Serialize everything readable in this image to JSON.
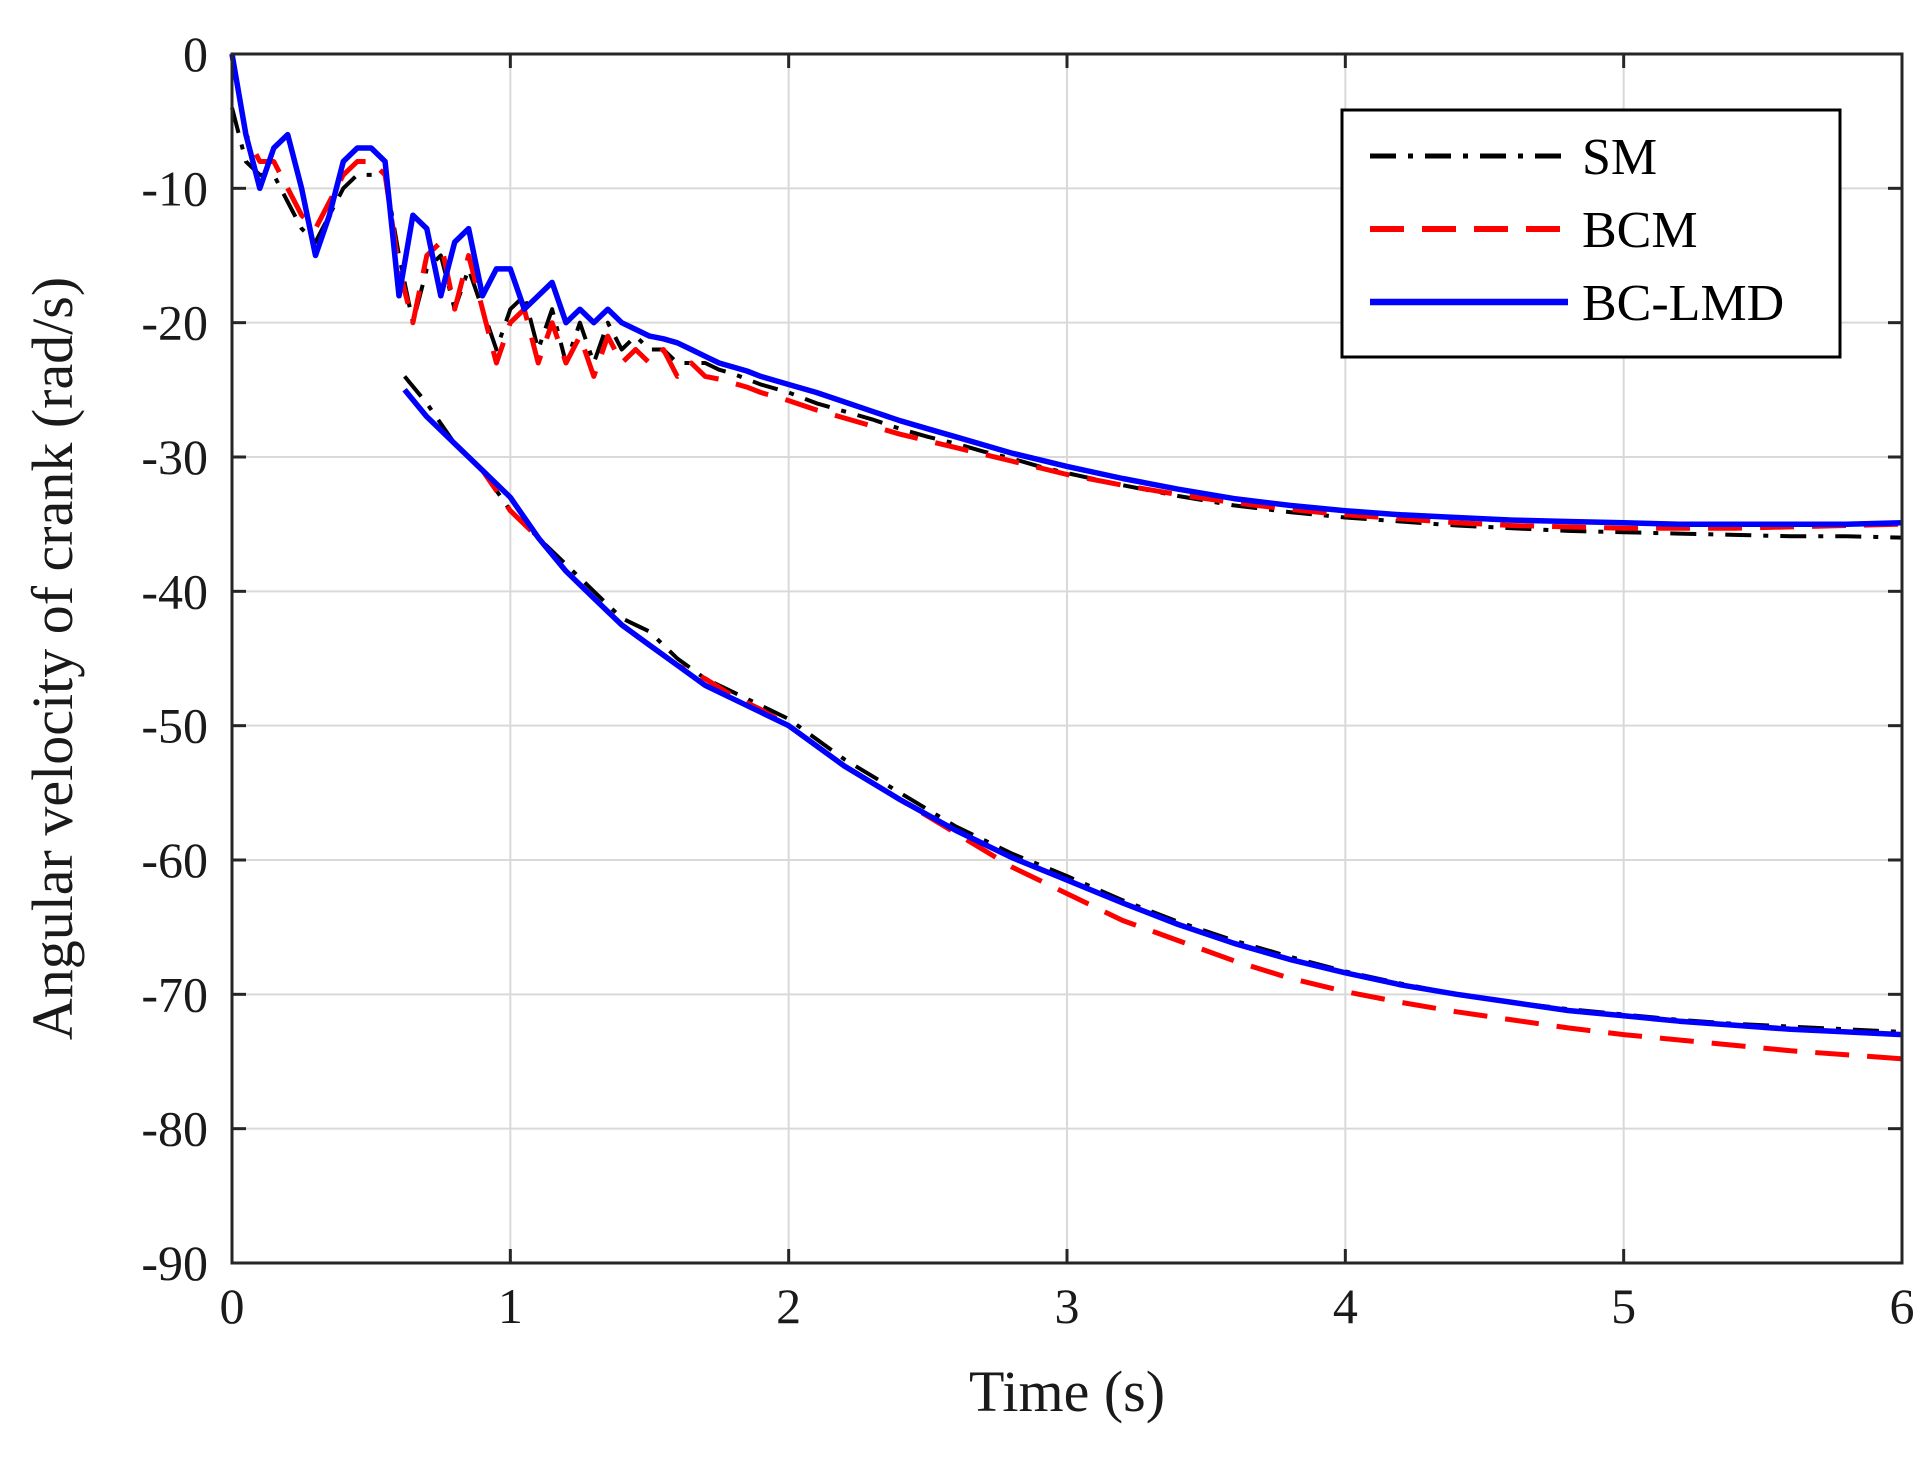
{
  "chart_data": {
    "type": "line",
    "title": "",
    "xlabel": "Time (s)",
    "ylabel": "Angular velocity of crank (rad/s)",
    "xlim": [
      0,
      6
    ],
    "ylim": [
      -90,
      0
    ],
    "x_ticks": [
      0,
      1,
      2,
      3,
      4,
      5,
      6
    ],
    "y_ticks": [
      0,
      -10,
      -20,
      -30,
      -40,
      -50,
      -60,
      -70,
      -80,
      -90
    ],
    "grid": true,
    "legend_position": "top-right",
    "series": [
      {
        "name": "SM",
        "color": "#000000",
        "style": "dashdot",
        "branches": [
          {
            "x": [
              0,
              0.05,
              0.1,
              0.15,
              0.2,
              0.25,
              0.3,
              0.35,
              0.4,
              0.45,
              0.5,
              0.55,
              0.6,
              0.65,
              0.7,
              0.75,
              0.8,
              0.85,
              0.9,
              0.95,
              1.0,
              1.05,
              1.1,
              1.15,
              1.2,
              1.25,
              1.3,
              1.35,
              1.4,
              1.45,
              1.5,
              1.55,
              1.6,
              1.65,
              1.7,
              1.75,
              1.8,
              1.85,
              1.9,
              2.0,
              2.1,
              2.2,
              2.3,
              2.4,
              2.5,
              2.6,
              2.7,
              2.8,
              2.9,
              3.0,
              3.2,
              3.4,
              3.6,
              3.8,
              4.0,
              4.2,
              4.4,
              4.6,
              4.8,
              5.0,
              5.2,
              5.4,
              5.6,
              5.8,
              6.0
            ],
            "y": [
              -4,
              -8,
              -9,
              -9,
              -11,
              -13,
              -14,
              -12,
              -10,
              -9,
              -9,
              -9,
              -15,
              -20,
              -16,
              -15,
              -19,
              -16,
              -19,
              -22,
              -19,
              -18,
              -22,
              -19,
              -23,
              -20,
              -23,
              -20,
              -22,
              -21,
              -22,
              -22,
              -23,
              -23,
              -23,
              -23.5,
              -23.8,
              -24.2,
              -24.6,
              -25.2,
              -26,
              -26.6,
              -27.2,
              -27.9,
              -28.5,
              -29,
              -29.6,
              -30.1,
              -30.7,
              -31.2,
              -32.1,
              -32.9,
              -33.6,
              -34.1,
              -34.5,
              -34.8,
              -35.1,
              -35.3,
              -35.5,
              -35.6,
              -35.7,
              -35.8,
              -35.9,
              -35.9,
              -36
            ]
          },
          {
            "x": [
              0.62,
              0.7,
              0.8,
              0.9,
              1.0,
              1.1,
              1.2,
              1.3,
              1.4,
              1.5,
              1.6,
              1.7,
              1.8,
              1.9,
              2.0,
              2.2,
              2.4,
              2.6,
              2.8,
              3.0,
              3.2,
              3.4,
              3.6,
              3.8,
              4.0,
              4.2,
              4.4,
              4.6,
              4.8,
              5.0,
              5.2,
              5.4,
              5.6,
              5.8,
              6.0
            ],
            "y": [
              -24,
              -26,
              -29,
              -31,
              -34,
              -36,
              -38,
              -40,
              -42,
              -43,
              -45,
              -46.5,
              -47.5,
              -48.5,
              -49.5,
              -52.5,
              -55,
              -57.5,
              -59.5,
              -61.2,
              -63,
              -64.6,
              -66,
              -67.2,
              -68.3,
              -69.2,
              -70,
              -70.6,
              -71.1,
              -71.5,
              -71.9,
              -72.2,
              -72.4,
              -72.6,
              -72.8
            ]
          }
        ]
      },
      {
        "name": "BCM",
        "color": "#ff0000",
        "style": "dashed",
        "branches": [
          {
            "x": [
              0,
              0.05,
              0.1,
              0.15,
              0.2,
              0.25,
              0.3,
              0.35,
              0.4,
              0.45,
              0.5,
              0.55,
              0.6,
              0.65,
              0.7,
              0.75,
              0.8,
              0.85,
              0.9,
              0.95,
              1.0,
              1.05,
              1.1,
              1.15,
              1.2,
              1.25,
              1.3,
              1.35,
              1.4,
              1.45,
              1.5,
              1.55,
              1.6,
              1.65,
              1.7,
              1.75,
              1.8,
              1.85,
              1.9,
              2.0,
              2.1,
              2.2,
              2.3,
              2.4,
              2.5,
              2.6,
              2.7,
              2.8,
              2.9,
              3.0,
              3.2,
              3.4,
              3.6,
              3.8,
              4.0,
              4.2,
              4.4,
              4.6,
              4.8,
              5.0,
              5.2,
              5.4,
              5.6,
              5.8,
              6.0
            ],
            "y": [
              0,
              -6,
              -8,
              -8,
              -10,
              -12,
              -13,
              -11,
              -9,
              -8,
              -8,
              -9,
              -16,
              -20,
              -15,
              -14,
              -19,
              -15,
              -19,
              -23,
              -20,
              -19,
              -23,
              -20,
              -23,
              -21,
              -24,
              -21,
              -23,
              -22,
              -23,
              -22,
              -24,
              -23,
              -24,
              -24.2,
              -24.5,
              -24.8,
              -25.2,
              -25.8,
              -26.5,
              -27.1,
              -27.7,
              -28.3,
              -28.8,
              -29.3,
              -29.8,
              -30.3,
              -30.8,
              -31.3,
              -32.1,
              -32.8,
              -33.4,
              -33.9,
              -34.3,
              -34.6,
              -34.9,
              -35.1,
              -35.2,
              -35.3,
              -35.3,
              -35.3,
              -35.2,
              -35.1,
              -35
            ]
          },
          {
            "x": [
              0.62,
              0.7,
              0.8,
              0.9,
              1.0,
              1.1,
              1.2,
              1.3,
              1.4,
              1.5,
              1.6,
              1.7,
              1.8,
              1.9,
              2.0,
              2.2,
              2.4,
              2.6,
              2.8,
              3.0,
              3.2,
              3.4,
              3.6,
              3.8,
              4.0,
              4.2,
              4.4,
              4.6,
              4.8,
              5.0,
              5.2,
              5.4,
              5.6,
              5.8,
              6.0
            ],
            "y": [
              -25,
              -27,
              -29,
              -31,
              -34,
              -36,
              -38.5,
              -40.5,
              -42.5,
              -44,
              -45.5,
              -46.5,
              -47.8,
              -48.8,
              -50,
              -53,
              -55.5,
              -58,
              -60.5,
              -62.5,
              -64.5,
              -66,
              -67.5,
              -68.8,
              -69.8,
              -70.6,
              -71.3,
              -71.9,
              -72.5,
              -73,
              -73.4,
              -73.8,
              -74.2,
              -74.5,
              -74.8
            ]
          }
        ]
      },
      {
        "name": "BC-LMD",
        "color": "#0000ff",
        "style": "solid",
        "branches": [
          {
            "x": [
              0,
              0.05,
              0.1,
              0.15,
              0.2,
              0.25,
              0.3,
              0.35,
              0.4,
              0.45,
              0.5,
              0.55,
              0.6,
              0.65,
              0.7,
              0.75,
              0.8,
              0.85,
              0.9,
              0.95,
              1.0,
              1.05,
              1.1,
              1.15,
              1.2,
              1.25,
              1.3,
              1.35,
              1.4,
              1.45,
              1.5,
              1.55,
              1.6,
              1.65,
              1.7,
              1.75,
              1.8,
              1.85,
              1.9,
              2.0,
              2.1,
              2.2,
              2.3,
              2.4,
              2.5,
              2.6,
              2.7,
              2.8,
              2.9,
              3.0,
              3.2,
              3.4,
              3.6,
              3.8,
              4.0,
              4.2,
              4.4,
              4.6,
              4.8,
              5.0,
              5.2,
              5.4,
              5.6,
              5.8,
              6.0
            ],
            "y": [
              0,
              -6,
              -10,
              -7,
              -6,
              -10,
              -15,
              -12,
              -8,
              -7,
              -7,
              -8,
              -18,
              -12,
              -13,
              -18,
              -14,
              -13,
              -18,
              -16,
              -16,
              -19,
              -18,
              -17,
              -20,
              -19,
              -20,
              -19,
              -20,
              -20.5,
              -21,
              -21.2,
              -21.5,
              -22,
              -22.5,
              -23,
              -23.3,
              -23.6,
              -24,
              -24.6,
              -25.2,
              -25.9,
              -26.6,
              -27.3,
              -27.9,
              -28.5,
              -29.1,
              -29.7,
              -30.2,
              -30.7,
              -31.6,
              -32.4,
              -33.1,
              -33.6,
              -34,
              -34.3,
              -34.5,
              -34.7,
              -34.8,
              -34.9,
              -35,
              -35,
              -35,
              -35,
              -34.9
            ]
          },
          {
            "x": [
              0.62,
              0.7,
              0.8,
              0.9,
              1.0,
              1.1,
              1.2,
              1.3,
              1.4,
              1.5,
              1.6,
              1.7,
              1.8,
              1.9,
              2.0,
              2.2,
              2.4,
              2.6,
              2.8,
              3.0,
              3.2,
              3.4,
              3.6,
              3.8,
              4.0,
              4.2,
              4.4,
              4.6,
              4.8,
              5.0,
              5.2,
              5.4,
              5.6,
              5.8,
              6.0
            ],
            "y": [
              -25,
              -27,
              -29,
              -31,
              -33,
              -36,
              -38.5,
              -40.5,
              -42.5,
              -44,
              -45.5,
              -47,
              -48,
              -49,
              -50,
              -53,
              -55.5,
              -57.8,
              -59.8,
              -61.5,
              -63.2,
              -64.8,
              -66.2,
              -67.4,
              -68.4,
              -69.3,
              -70,
              -70.6,
              -71.2,
              -71.6,
              -72,
              -72.3,
              -72.6,
              -72.8,
              -73
            ]
          }
        ]
      }
    ]
  }
}
